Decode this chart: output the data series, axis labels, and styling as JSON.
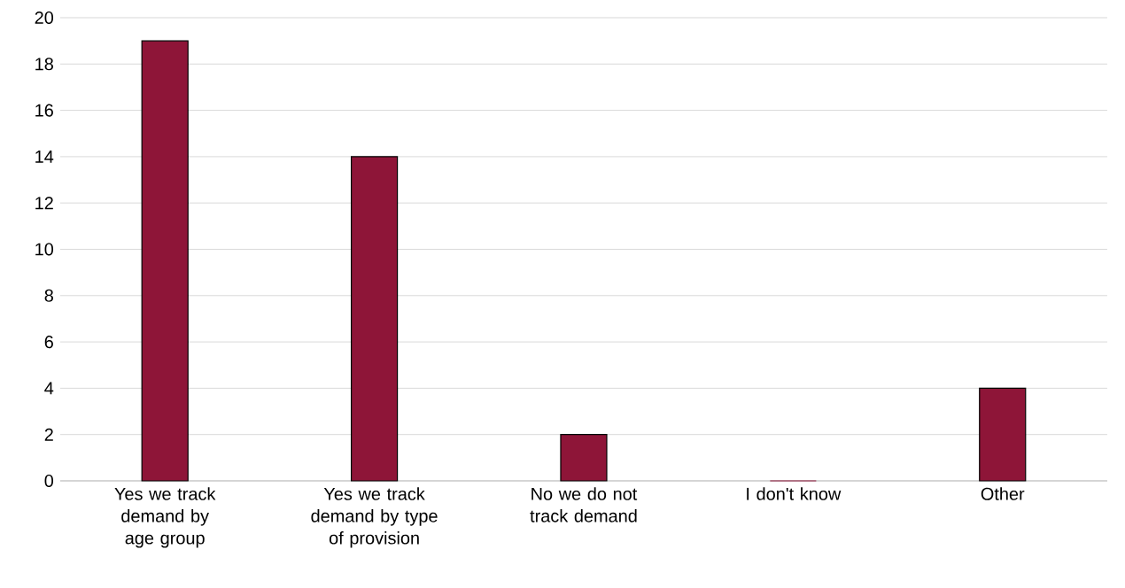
{
  "chart_data": {
    "type": "bar",
    "categories": [
      "Yes we track demand by age group",
      "Yes we track demand by type of provision",
      "No we do not track demand",
      "I don't know",
      "Other"
    ],
    "values": [
      19,
      14,
      2,
      0,
      4
    ],
    "color": "#8e1538",
    "ylim": [
      0,
      20
    ],
    "yticks": [
      0,
      2,
      4,
      6,
      8,
      10,
      12,
      14,
      16,
      18,
      20
    ],
    "grid": "y"
  }
}
